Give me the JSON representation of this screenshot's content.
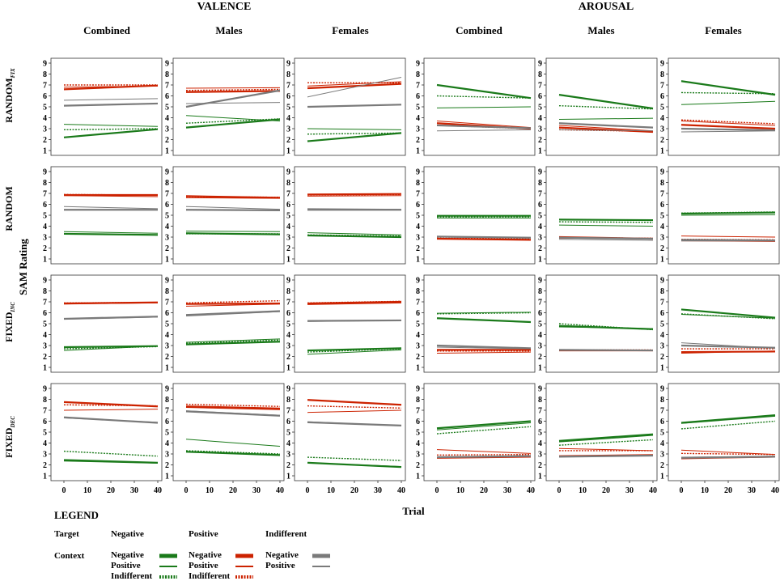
{
  "colors": {
    "green": "#1a7a1a",
    "red": "#cc2200",
    "gray": "#7a7a7a",
    "axis": "#333333"
  },
  "figure": {
    "col_groups": [
      "VALENCE",
      "AROUSAL"
    ],
    "col_headers": [
      "Combined",
      "Males",
      "Females",
      "Combined",
      "Males",
      "Females"
    ],
    "row_labels": [
      {
        "main": "RANDOM",
        "sub": "FIX"
      },
      {
        "main": "RANDOM",
        "sub": ""
      },
      {
        "main": "FIXED",
        "sub": "INC"
      },
      {
        "main": "FIXED",
        "sub": "DEC"
      }
    ],
    "ylabel": "SAM Rating",
    "xlabel": "Trial"
  },
  "legend": {
    "title": "LEGEND",
    "target_label": "Target",
    "context_label": "Context",
    "groups": [
      {
        "target": "Negative",
        "contexts": [
          "Negative",
          "Positive",
          "Indifferent"
        ],
        "color": "green"
      },
      {
        "target": "Positive",
        "contexts": [
          "Negative",
          "Positive",
          "Indifferent"
        ],
        "color": "red"
      },
      {
        "target": "Indifferent",
        "contexts": [
          "Negative",
          "Positive"
        ],
        "color": "gray"
      }
    ]
  },
  "chart_data": {
    "type": "line",
    "description_units": "SAM rating (1-9) vs trial (0-40); each line given as [value at trial 0, value at trial 40]",
    "x": [
      0,
      40
    ],
    "xticks": [
      0,
      10,
      20,
      30,
      40
    ],
    "ylim": [
      1,
      9
    ],
    "yticks": [
      1,
      2,
      3,
      4,
      5,
      6,
      7,
      8,
      9
    ],
    "series_keys": [
      "NegNeg",
      "NegPos",
      "NegInd",
      "PosNeg",
      "PosPos",
      "PosInd",
      "IndNeg",
      "IndPos"
    ],
    "series_meta": {
      "NegNeg": {
        "target": "Negative",
        "context": "Negative",
        "color": "green",
        "style": "thick"
      },
      "NegPos": {
        "target": "Negative",
        "context": "Positive",
        "color": "green",
        "style": "thin"
      },
      "NegInd": {
        "target": "Negative",
        "context": "Indifferent",
        "color": "green",
        "style": "dotted"
      },
      "PosNeg": {
        "target": "Positive",
        "context": "Negative",
        "color": "red",
        "style": "thick"
      },
      "PosPos": {
        "target": "Positive",
        "context": "Positive",
        "color": "red",
        "style": "thin"
      },
      "PosInd": {
        "target": "Positive",
        "context": "Indifferent",
        "color": "red",
        "style": "dotted"
      },
      "IndNeg": {
        "target": "Indifferent",
        "context": "Negative",
        "color": "gray",
        "style": "thick"
      },
      "IndPos": {
        "target": "Indifferent",
        "context": "Positive",
        "color": "gray",
        "style": "thin"
      }
    },
    "panels": [
      [
        {
          "NegNeg": [
            2.2,
            2.95
          ],
          "NegPos": [
            3.4,
            3.2
          ],
          "NegInd": [
            2.9,
            3.0
          ],
          "PosNeg": [
            6.6,
            6.95
          ],
          "PosPos": [
            6.8,
            6.9
          ],
          "PosInd": [
            7.0,
            7.0
          ],
          "IndNeg": [
            5.1,
            5.3
          ],
          "IndPos": [
            5.6,
            5.75
          ]
        },
        {
          "NegNeg": [
            3.1,
            3.85
          ],
          "NegPos": [
            4.2,
            3.7
          ],
          "NegInd": [
            3.5,
            3.9
          ],
          "PosNeg": [
            6.35,
            6.45
          ],
          "PosPos": [
            6.7,
            6.75
          ],
          "PosInd": [
            6.5,
            6.6
          ],
          "IndNeg": [
            5.0,
            6.5
          ],
          "IndPos": [
            5.3,
            5.4
          ]
        },
        {
          "NegNeg": [
            1.85,
            2.6
          ],
          "NegPos": [
            3.0,
            2.9
          ],
          "NegInd": [
            2.5,
            2.6
          ],
          "PosNeg": [
            6.7,
            7.1
          ],
          "PosPos": [
            6.9,
            7.3
          ],
          "PosInd": [
            7.2,
            7.2
          ],
          "IndNeg": [
            5.0,
            5.2
          ],
          "IndPos": [
            5.9,
            7.7
          ]
        },
        {
          "NegNeg": [
            7.0,
            5.8
          ],
          "NegPos": [
            4.9,
            5.0
          ],
          "NegInd": [
            6.0,
            5.8
          ],
          "PosNeg": [
            3.5,
            3.0
          ],
          "PosPos": [
            3.7,
            3.1
          ],
          "PosInd": [
            3.3,
            3.0
          ],
          "IndNeg": [
            3.3,
            3.05
          ],
          "IndPos": [
            2.8,
            2.9
          ]
        },
        {
          "NegNeg": [
            6.1,
            4.85
          ],
          "NegPos": [
            3.85,
            3.95
          ],
          "NegInd": [
            5.1,
            4.8
          ],
          "PosNeg": [
            3.1,
            2.7
          ],
          "PosPos": [
            3.3,
            2.8
          ],
          "PosInd": [
            2.9,
            2.75
          ],
          "IndNeg": [
            3.5,
            3.1
          ],
          "IndPos": [
            2.9,
            2.8
          ]
        },
        {
          "NegNeg": [
            7.35,
            6.1
          ],
          "NegPos": [
            5.2,
            5.5
          ],
          "NegInd": [
            6.3,
            6.2
          ],
          "PosNeg": [
            3.35,
            3.0
          ],
          "PosPos": [
            3.7,
            3.3
          ],
          "PosInd": [
            3.8,
            3.45
          ],
          "IndNeg": [
            3.0,
            2.85
          ],
          "IndPos": [
            2.7,
            2.8
          ]
        }
      ],
      [
        {
          "NegNeg": [
            3.3,
            3.2
          ],
          "NegPos": [
            3.5,
            3.35
          ],
          "NegInd": [
            3.3,
            3.2
          ],
          "PosNeg": [
            6.85,
            6.85
          ],
          "PosPos": [
            6.8,
            6.7
          ],
          "PosInd": [
            6.9,
            6.85
          ],
          "IndNeg": [
            5.5,
            5.5
          ],
          "IndPos": [
            5.8,
            5.6
          ]
        },
        {
          "NegNeg": [
            3.35,
            3.25
          ],
          "NegPos": [
            3.55,
            3.5
          ],
          "NegInd": [
            3.3,
            3.3
          ],
          "PosNeg": [
            6.75,
            6.6
          ],
          "PosPos": [
            6.6,
            6.55
          ],
          "PosInd": [
            6.7,
            6.65
          ],
          "IndNeg": [
            5.5,
            5.45
          ],
          "IndPos": [
            5.8,
            5.55
          ]
        },
        {
          "NegNeg": [
            3.15,
            3.0
          ],
          "NegPos": [
            3.4,
            3.2
          ],
          "NegInd": [
            3.2,
            3.1
          ],
          "PosNeg": [
            6.9,
            6.95
          ],
          "PosPos": [
            6.75,
            6.8
          ],
          "PosInd": [
            6.85,
            6.9
          ],
          "IndNeg": [
            5.5,
            5.5
          ],
          "IndPos": [
            5.6,
            5.55
          ]
        },
        {
          "NegNeg": [
            4.95,
            4.95
          ],
          "NegPos": [
            4.75,
            4.75
          ],
          "NegInd": [
            4.85,
            4.85
          ],
          "PosNeg": [
            2.85,
            2.75
          ],
          "PosPos": [
            3.0,
            2.95
          ],
          "PosInd": [
            2.9,
            2.85
          ],
          "IndNeg": [
            3.05,
            2.95
          ],
          "IndPos": [
            3.0,
            2.9
          ]
        },
        {
          "NegNeg": [
            4.6,
            4.55
          ],
          "NegPos": [
            4.1,
            4.0
          ],
          "NegInd": [
            4.4,
            4.35
          ],
          "PosNeg": [
            3.0,
            2.85
          ],
          "PosPos": [
            2.9,
            2.85
          ],
          "PosInd": [
            2.95,
            2.9
          ],
          "IndNeg": [
            2.95,
            2.85
          ],
          "IndPos": [
            2.8,
            2.7
          ]
        },
        {
          "NegNeg": [
            5.15,
            5.25
          ],
          "NegPos": [
            5.0,
            5.05
          ],
          "NegInd": [
            5.2,
            5.3
          ],
          "PosNeg": [
            2.7,
            2.65
          ],
          "PosPos": [
            3.1,
            3.0
          ],
          "PosInd": [
            2.8,
            2.75
          ],
          "IndNeg": [
            2.75,
            2.7
          ],
          "IndPos": [
            2.65,
            2.65
          ]
        }
      ],
      [
        {
          "NegNeg": [
            2.85,
            2.95
          ],
          "NegPos": [
            2.55,
            2.95
          ],
          "NegInd": [
            2.7,
            2.9
          ],
          "PosNeg": [
            6.85,
            6.95
          ],
          "PosPos": [
            6.8,
            6.9
          ],
          "PosInd": [
            6.9,
            6.95
          ],
          "IndNeg": [
            5.45,
            5.65
          ],
          "IndPos": [
            5.4,
            5.6
          ]
        },
        {
          "NegNeg": [
            3.1,
            3.35
          ],
          "NegPos": [
            3.3,
            3.6
          ],
          "NegInd": [
            3.2,
            3.5
          ],
          "PosNeg": [
            6.8,
            6.85
          ],
          "PosPos": [
            6.6,
            6.8
          ],
          "PosInd": [
            6.9,
            7.1
          ],
          "IndNeg": [
            5.8,
            6.15
          ],
          "IndPos": [
            5.7,
            6.1
          ]
        },
        {
          "NegNeg": [
            2.55,
            2.75
          ],
          "NegPos": [
            2.2,
            2.6
          ],
          "NegInd": [
            2.4,
            2.7
          ],
          "PosNeg": [
            6.85,
            7.0
          ],
          "PosPos": [
            6.75,
            6.9
          ],
          "PosInd": [
            6.9,
            7.05
          ],
          "IndNeg": [
            5.25,
            5.3
          ],
          "IndPos": [
            5.2,
            5.3
          ]
        },
        {
          "NegNeg": [
            5.5,
            5.15
          ],
          "NegPos": [
            5.95,
            6.05
          ],
          "NegInd": [
            5.9,
            6.0
          ],
          "PosNeg": [
            2.6,
            2.6
          ],
          "PosPos": [
            2.3,
            2.4
          ],
          "PosInd": [
            2.5,
            2.5
          ],
          "IndNeg": [
            3.0,
            2.75
          ],
          "IndPos": [
            2.85,
            2.7
          ]
        },
        {
          "NegNeg": [
            4.8,
            4.5
          ],
          "NegPos": [
            4.7,
            4.55
          ],
          "NegInd": [
            5.0,
            4.45
          ],
          "PosNeg": [
            2.55,
            2.55
          ],
          "PosPos": [
            2.6,
            2.55
          ],
          "PosInd": [
            2.6,
            2.6
          ],
          "IndNeg": [
            2.6,
            2.55
          ],
          "IndPos": [
            2.55,
            2.55
          ]
        },
        {
          "NegNeg": [
            6.3,
            5.55
          ],
          "NegPos": [
            5.85,
            5.5
          ],
          "NegInd": [
            5.9,
            5.45
          ],
          "PosNeg": [
            2.4,
            2.45
          ],
          "PosPos": [
            2.3,
            2.5
          ],
          "PosInd": [
            2.7,
            2.7
          ],
          "IndNeg": [
            3.0,
            2.8
          ],
          "IndPos": [
            3.25,
            2.75
          ]
        }
      ],
      [
        {
          "NegNeg": [
            2.45,
            2.2
          ],
          "NegPos": [
            2.35,
            2.15
          ],
          "NegInd": [
            3.25,
            2.8
          ],
          "PosNeg": [
            7.75,
            7.35
          ],
          "PosPos": [
            7.0,
            7.1
          ],
          "PosInd": [
            7.5,
            7.4
          ],
          "IndNeg": [
            6.35,
            5.85
          ],
          "IndPos": [
            6.3,
            5.9
          ]
        },
        {
          "NegNeg": [
            3.2,
            2.9
          ],
          "NegPos": [
            4.35,
            3.7
          ],
          "NegInd": [
            3.3,
            3.0
          ],
          "PosNeg": [
            7.3,
            7.1
          ],
          "PosPos": [
            7.4,
            7.2
          ],
          "PosInd": [
            7.55,
            7.35
          ],
          "IndNeg": [
            6.9,
            6.5
          ],
          "IndPos": [
            6.95,
            6.55
          ]
        },
        {
          "NegNeg": [
            2.2,
            1.8
          ],
          "NegPos": [
            2.2,
            1.85
          ],
          "NegInd": [
            2.7,
            2.4
          ],
          "PosNeg": [
            7.95,
            7.5
          ],
          "PosPos": [
            6.8,
            7.0
          ],
          "PosInd": [
            7.4,
            7.2
          ],
          "IndNeg": [
            5.9,
            5.6
          ],
          "IndPos": [
            5.95,
            5.6
          ]
        },
        {
          "NegNeg": [
            5.35,
            6.0
          ],
          "NegPos": [
            5.2,
            5.85
          ],
          "NegInd": [
            4.85,
            5.5
          ],
          "PosNeg": [
            2.65,
            2.75
          ],
          "PosPos": [
            3.4,
            3.05
          ],
          "PosInd": [
            2.9,
            2.95
          ],
          "IndNeg": [
            2.7,
            2.8
          ],
          "IndPos": [
            2.75,
            2.85
          ]
        },
        {
          "NegNeg": [
            4.2,
            4.8
          ],
          "NegPos": [
            4.1,
            4.7
          ],
          "NegInd": [
            3.8,
            4.3
          ],
          "PosNeg": [
            2.8,
            2.9
          ],
          "PosPos": [
            3.5,
            3.3
          ],
          "PosInd": [
            3.3,
            3.3
          ],
          "IndNeg": [
            2.75,
            2.85
          ],
          "IndPos": [
            2.8,
            2.9
          ]
        },
        {
          "NegNeg": [
            5.85,
            6.55
          ],
          "NegPos": [
            5.8,
            6.45
          ],
          "NegInd": [
            5.3,
            6.0
          ],
          "PosNeg": [
            2.6,
            2.75
          ],
          "PosPos": [
            3.35,
            2.95
          ],
          "PosInd": [
            3.05,
            2.95
          ],
          "IndNeg": [
            2.65,
            2.75
          ],
          "IndPos": [
            2.7,
            2.8
          ]
        }
      ]
    ]
  }
}
